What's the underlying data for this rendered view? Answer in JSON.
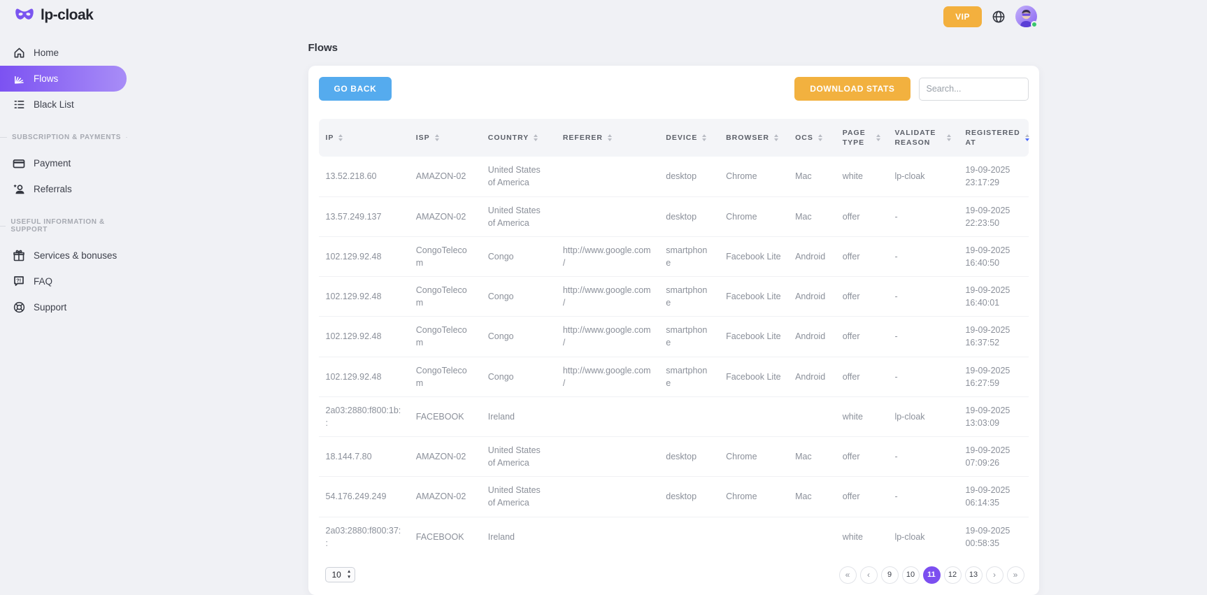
{
  "brand": {
    "name": "lp-cloak"
  },
  "topbar": {
    "vip_label": "VIP"
  },
  "sidebar": {
    "sections": [
      {
        "header": "",
        "items": [
          {
            "label": "Home",
            "icon": "home-icon",
            "active": false
          },
          {
            "label": "Flows",
            "icon": "flows-icon",
            "active": true
          },
          {
            "label": "Black List",
            "icon": "blacklist-icon",
            "active": false
          }
        ]
      },
      {
        "header": "Subscription & payments",
        "items": [
          {
            "label": "Payment",
            "icon": "payment-card-icon",
            "active": false
          },
          {
            "label": "Referrals",
            "icon": "referrals-person-icon",
            "active": false
          }
        ]
      },
      {
        "header": "Useful information & support",
        "items": [
          {
            "label": "Services & bonuses",
            "icon": "gift-icon",
            "active": false
          },
          {
            "label": "FAQ",
            "icon": "faq-bubble-icon",
            "active": false
          },
          {
            "label": "Support",
            "icon": "lifebuoy-icon",
            "active": false
          }
        ]
      }
    ]
  },
  "page": {
    "title": "Flows"
  },
  "toolbar": {
    "go_back_label": "GO BACK",
    "download_stats_label": "DOWNLOAD STATS",
    "search_placeholder": "Search..."
  },
  "table": {
    "keys": [
      "ip",
      "isp",
      "country",
      "referer",
      "device",
      "browser",
      "ocs",
      "page_type",
      "validate_reason",
      "registered_at"
    ],
    "columns": [
      {
        "label": "IP",
        "sort": "none"
      },
      {
        "label": "ISP",
        "sort": "none"
      },
      {
        "label": "COUNTRY",
        "sort": "none"
      },
      {
        "label": "REFERER",
        "sort": "none"
      },
      {
        "label": "DEVICE",
        "sort": "none"
      },
      {
        "label": "BROWSER",
        "sort": "none"
      },
      {
        "label": "OCS",
        "sort": "none"
      },
      {
        "label": "PAGE TYPE",
        "sort": "none"
      },
      {
        "label": "VALIDATE REASON",
        "sort": "none"
      },
      {
        "label": "REGISTERED AT",
        "sort": "desc"
      }
    ],
    "rows": [
      {
        "ip": "13.52.218.60",
        "isp": "AMAZON-02",
        "country": "United States of America",
        "referer": "",
        "device": "desktop",
        "browser": "Chrome",
        "ocs": "Mac",
        "page_type": "white",
        "validate_reason": "lp-cloak",
        "registered_at": "19-09-2025 23:17:29"
      },
      {
        "ip": "13.57.249.137",
        "isp": "AMAZON-02",
        "country": "United States of America",
        "referer": "",
        "device": "desktop",
        "browser": "Chrome",
        "ocs": "Mac",
        "page_type": "offer",
        "validate_reason": "-",
        "registered_at": "19-09-2025 22:23:50"
      },
      {
        "ip": "102.129.92.48",
        "isp": "CongoTelecom",
        "country": "Congo",
        "referer": "http://www.google.com/",
        "device": "smartphone",
        "browser": "Facebook Lite",
        "ocs": "Android",
        "page_type": "offer",
        "validate_reason": "-",
        "registered_at": "19-09-2025 16:40:50"
      },
      {
        "ip": "102.129.92.48",
        "isp": "CongoTelecom",
        "country": "Congo",
        "referer": "http://www.google.com/",
        "device": "smartphone",
        "browser": "Facebook Lite",
        "ocs": "Android",
        "page_type": "offer",
        "validate_reason": "-",
        "registered_at": "19-09-2025 16:40:01"
      },
      {
        "ip": "102.129.92.48",
        "isp": "CongoTelecom",
        "country": "Congo",
        "referer": "http://www.google.com/",
        "device": "smartphone",
        "browser": "Facebook Lite",
        "ocs": "Android",
        "page_type": "offer",
        "validate_reason": "-",
        "registered_at": "19-09-2025 16:37:52"
      },
      {
        "ip": "102.129.92.48",
        "isp": "CongoTelecom",
        "country": "Congo",
        "referer": "http://www.google.com/",
        "device": "smartphone",
        "browser": "Facebook Lite",
        "ocs": "Android",
        "page_type": "offer",
        "validate_reason": "-",
        "registered_at": "19-09-2025 16:27:59"
      },
      {
        "ip": "2a03:2880:f800:1b::",
        "isp": "FACEBOOK",
        "country": "Ireland",
        "referer": "",
        "device": "",
        "browser": "",
        "ocs": "",
        "page_type": "white",
        "validate_reason": "lp-cloak",
        "registered_at": "19-09-2025 13:03:09"
      },
      {
        "ip": "18.144.7.80",
        "isp": "AMAZON-02",
        "country": "United States of America",
        "referer": "",
        "device": "desktop",
        "browser": "Chrome",
        "ocs": "Mac",
        "page_type": "offer",
        "validate_reason": "-",
        "registered_at": "19-09-2025 07:09:26"
      },
      {
        "ip": "54.176.249.249",
        "isp": "AMAZON-02",
        "country": "United States of America",
        "referer": "",
        "device": "desktop",
        "browser": "Chrome",
        "ocs": "Mac",
        "page_type": "offer",
        "validate_reason": "-",
        "registered_at": "19-09-2025 06:14:35"
      },
      {
        "ip": "2a03:2880:f800:37::",
        "isp": "FACEBOOK",
        "country": "Ireland",
        "referer": "",
        "device": "",
        "browser": "",
        "ocs": "",
        "page_type": "white",
        "validate_reason": "lp-cloak",
        "registered_at": "19-09-2025 00:58:35"
      }
    ]
  },
  "pagination": {
    "page_size": "10",
    "items": [
      {
        "label": "«",
        "type": "first"
      },
      {
        "label": "‹",
        "type": "prev"
      },
      {
        "label": "9",
        "type": "page",
        "active": false
      },
      {
        "label": "10",
        "type": "page",
        "active": false
      },
      {
        "label": "11",
        "type": "page",
        "active": true
      },
      {
        "label": "12",
        "type": "page",
        "active": false
      },
      {
        "label": "13",
        "type": "page",
        "active": false
      },
      {
        "label": "›",
        "type": "next"
      },
      {
        "label": "»",
        "type": "last"
      }
    ]
  },
  "colors": {
    "accent_gradient_start": "#7c52f2",
    "accent_gradient_end": "#a88df7",
    "vip_orange": "#f3b03e",
    "go_back_blue": "#55abee",
    "download_orange": "#f2b13f",
    "active_page_purple": "#7c4ff0",
    "active_sort_blue": "#4d6bfb",
    "online_green": "#39c66d"
  }
}
